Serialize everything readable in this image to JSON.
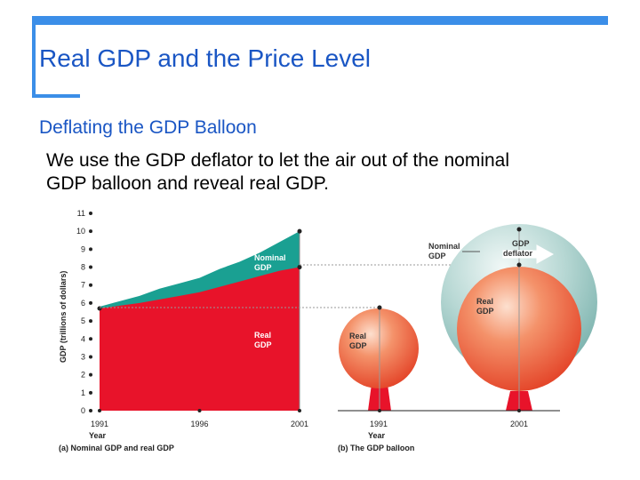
{
  "slide": {
    "title": "Real GDP and the Price Level",
    "subtitle": "Deflating the GDP Balloon",
    "body_line1": "We use the GDP deflator to let the air out of the nominal",
    "body_line2": "GDP balloon and reveal real GDP."
  },
  "colors": {
    "accent": "#3b8ee8",
    "title_text": "#1a56c4",
    "nominal_teal": "#1aa092",
    "real_red": "#e8132a",
    "balloon_red": "#f07a52",
    "balloon_teal": "#b6d7d3"
  },
  "chart_data": [
    {
      "type": "area",
      "caption": "(a) Nominal GDP and real GDP",
      "xlabel": "Year",
      "ylabel": "GDP (trillions of dollars)",
      "xlim": [
        1991,
        2001
      ],
      "ylim": [
        0,
        11
      ],
      "x_ticks": [
        "1991",
        "1996",
        "2001"
      ],
      "y_ticks": [
        "0",
        "1",
        "2",
        "3",
        "4",
        "5",
        "6",
        "7",
        "8",
        "9",
        "10",
        "11"
      ],
      "x": [
        1991,
        1992,
        1993,
        1994,
        1995,
        1996,
        1997,
        1998,
        1999,
        2000,
        2001
      ],
      "series": [
        {
          "name": "Nominal GDP",
          "values": [
            5.8,
            6.1,
            6.4,
            6.8,
            7.1,
            7.4,
            7.9,
            8.3,
            8.8,
            9.4,
            10.0
          ]
        },
        {
          "name": "Real GDP",
          "values": [
            5.7,
            5.85,
            6.0,
            6.2,
            6.4,
            6.6,
            6.9,
            7.2,
            7.5,
            7.8,
            8.0
          ]
        }
      ]
    },
    {
      "type": "other",
      "caption": "(b) The GDP balloon",
      "xlabel": "Year",
      "x_ticks": [
        "1991",
        "2001"
      ],
      "labels": {
        "real_1991": "Real GDP",
        "nominal_2001": "Nominal GDP",
        "deflator": "GDP deflator",
        "real_2001": "Real GDP"
      }
    }
  ]
}
